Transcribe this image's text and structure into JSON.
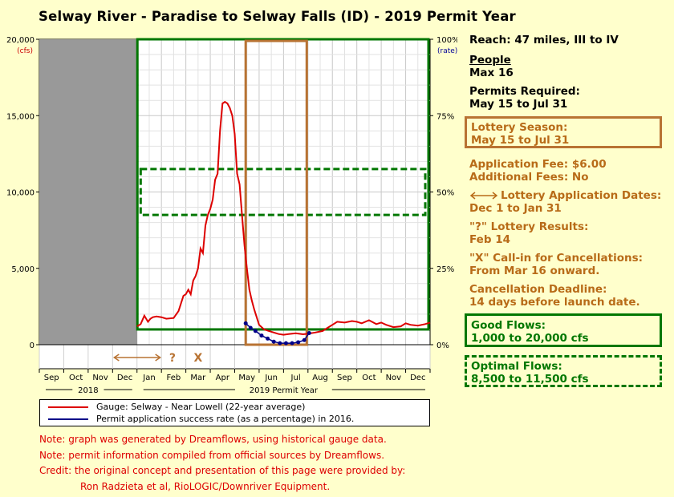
{
  "title": "Selway River - Paradise to Selway Falls (ID) - 2019 Permit Year",
  "sidebar": {
    "reach": "Reach: 47 miles, III to IV",
    "people_heading": "People",
    "people_value": "Max 16",
    "permits_heading": "Permits Required:",
    "permits_value": "May 15 to Jul 31",
    "lottery_season_heading": "Lottery Season:",
    "lottery_season_value": "May 15 to Jul 31",
    "application_fee": "Application Fee: $6.00",
    "additional_fees": "Additional Fees: No",
    "lottery_dates_heading": "Lottery Application Dates:",
    "lottery_dates_value": "Dec 1 to Jan 31",
    "lottery_results_heading": "\"?\" Lottery Results:",
    "lottery_results_value": "Feb 14",
    "callin_heading": "\"X\" Call-in for Cancellations:",
    "callin_value": "From Mar 16 onward.",
    "cancel_heading": "Cancellation Deadline:",
    "cancel_value": "14 days before launch date.",
    "good_flows_heading": "Good Flows:",
    "good_flows_value": "1,000 to 20,000 cfs",
    "optimal_flows_heading": "Optimal Flows:",
    "optimal_flows_value": "8,500 to 11,500 cfs"
  },
  "legend": {
    "gauge": "Gauge: Selway - Near Lowell (22-year average)",
    "rate": "Permit application success rate (as a percentage) in 2016."
  },
  "notes": {
    "note1": "Note: graph was generated by Dreamflows, using historical gauge data.",
    "note2": "Note: permit information compiled from official sources by Dreamflows.",
    "credit1": "Credit: the original concept and presentation of this page were provided by:",
    "credit2": "Ron Radzieta et al, RioLOGIC/Downriver Equipment."
  },
  "colors": {
    "gauge_line": "#dd0000",
    "rate_line": "#000088",
    "good_flows": "#007700",
    "permit_season": "#b87333",
    "pre_season": "#999999"
  },
  "chart_data": {
    "type": "line",
    "y_left": {
      "ticks": [
        "20,000",
        "15,000",
        "10,000",
        "5,000",
        "0"
      ],
      "unit": "(cfs)",
      "range": [
        0,
        20000
      ]
    },
    "y_right": {
      "ticks": [
        "100%",
        "75%",
        "50%",
        "25%",
        "0%"
      ],
      "unit": "(rate)",
      "range": [
        0,
        100
      ]
    },
    "x_months": [
      "Sep",
      "Oct",
      "Nov",
      "Dec",
      "Jan",
      "Feb",
      "Mar",
      "Apr",
      "May",
      "Jun",
      "Jul",
      "Aug",
      "Sep",
      "Oct",
      "Nov",
      "Dec"
    ],
    "x_groups": [
      "2018",
      "2019 Permit Year"
    ],
    "lottery_markers": [
      "?",
      "X"
    ],
    "good_flows_range": [
      1000,
      20000
    ],
    "optimal_flows_range": [
      8500,
      11500
    ],
    "permit_season": [
      "May 15",
      "Jul 31"
    ],
    "gauge_series": {
      "name": "Gauge: Selway - Near Lowell (22-year average)",
      "x": [
        0,
        0.15,
        0.3,
        0.45,
        0.55,
        0.65,
        0.8,
        1.0,
        1.2,
        1.5,
        1.7,
        1.9,
        2.0,
        2.1,
        2.2,
        2.3,
        2.4,
        2.5,
        2.6,
        2.7,
        2.8,
        2.9,
        3.0,
        3.1,
        3.2,
        3.3,
        3.4,
        3.5,
        3.6,
        3.7,
        3.8,
        3.9,
        4.0,
        4.1,
        4.2,
        4.3,
        4.4,
        4.5,
        4.6,
        4.7,
        4.8,
        4.9,
        5.0,
        5.2,
        5.4,
        5.6,
        5.8,
        6.0,
        6.2,
        6.5,
        6.8,
        7.0,
        7.3,
        7.6,
        7.8,
        8.0,
        8.2,
        8.5,
        8.8,
        9.0,
        9.2,
        9.5,
        9.8,
        10.0,
        10.2,
        10.5,
        10.8,
        11.0,
        11.2,
        11.5,
        11.8,
        12.0
      ],
      "values": [
        1200,
        1350,
        1900,
        1500,
        1700,
        1800,
        1850,
        1800,
        1700,
        1750,
        2200,
        3200,
        3300,
        3600,
        3300,
        4200,
        4500,
        5000,
        6300,
        6000,
        7800,
        8500,
        8900,
        9500,
        10800,
        11200,
        14000,
        15800,
        15900,
        15800,
        15500,
        15000,
        13800,
        11200,
        10500,
        8500,
        6500,
        5000,
        3600,
        2900,
        2300,
        1800,
        1300,
        1000,
        900,
        800,
        700,
        650,
        700,
        750,
        680,
        720,
        800,
        900,
        1100,
        1300,
        1500,
        1450,
        1550,
        1500,
        1400,
        1600,
        1350,
        1450,
        1300,
        1150,
        1200,
        1400,
        1300,
        1250,
        1350,
        1450
      ]
    },
    "rate_series": {
      "name": "Permit application success rate (as a percentage) in 2016.",
      "x": [
        4.45,
        4.65,
        4.85,
        5.1,
        5.35,
        5.6,
        5.85,
        6.1,
        6.35,
        6.6,
        6.85,
        7.05
      ],
      "values": [
        7,
        5.5,
        4.5,
        3,
        2,
        1,
        0.5,
        0.5,
        0.5,
        0.8,
        1.5,
        3.8
      ]
    }
  }
}
